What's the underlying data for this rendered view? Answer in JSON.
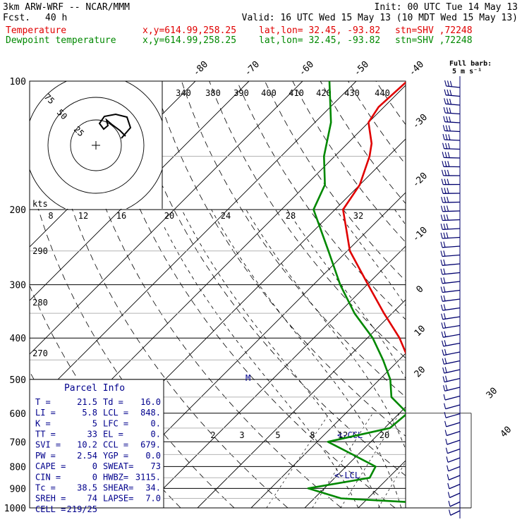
{
  "header": {
    "model": "3km ARW-WRF -- NCAR/MMM",
    "fcst_label": "Fcst.",
    "fcst_value": "40 h",
    "init": "Init: 00 UTC Tue 14 May 13",
    "valid": "Valid: 16 UTC Wed 15 May 13 (10 MDT Wed 15 May 13)",
    "temp_line": {
      "name": "Temperature",
      "xy": "x,y=614.99,258.25",
      "latlon": "lat,lon= 32.45, -93.82",
      "stn": "stn=SHV ,72248"
    },
    "dew_line": {
      "name": "Dewpoint temperature",
      "xy": "x,y=614.99,258.25",
      "latlon": "lat,lon= 32.45, -93.82",
      "stn": "stn=SHV ,72248"
    }
  },
  "colors": {
    "temperature": "#e00000",
    "dewpoint": "#008800",
    "hodograph": "#000000",
    "barbs": "#00006e",
    "panel_text": "#00008c",
    "grid": "#000000"
  },
  "barb_label": {
    "line1": "Full barb:",
    "line2": "5 m s⁻¹"
  },
  "panel": {
    "title": "Parcel Info",
    "rows": [
      {
        "a": "T   =",
        "b": "21.5",
        "c": "Td =",
        "d": "16.0"
      },
      {
        "a": "LI  =",
        "b": "5.8",
        "c": "LCL =",
        "d": "848."
      },
      {
        "a": "K   =",
        "b": "5",
        "c": "LFC =",
        "d": "0."
      },
      {
        "a": "TT  =",
        "b": "33",
        "c": "EL  =",
        "d": "0."
      },
      {
        "a": "SVI =",
        "b": "10.2",
        "c": "CCL =",
        "d": "679."
      },
      {
        "a": "PW  =",
        "b": "2.54",
        "c": "YGP =",
        "d": "0.0"
      },
      {
        "a": "CAPE =",
        "b": "0",
        "c": "SWEAT=",
        "d": "73"
      },
      {
        "a": "CIN =",
        "b": "0",
        "c": "HWBZ=",
        "d": "3115."
      },
      {
        "a": "Tc  =",
        "b": "38.5",
        "c": "SHEAR=",
        "d": "34."
      },
      {
        "a": "SREH =",
        "b": "74",
        "c": "LAPSE=",
        "d": "7.0"
      },
      {
        "a": "CELL =",
        "b": "219/25",
        "c": "",
        "d": ""
      }
    ]
  },
  "annotations": {
    "ccl": "<-CCL",
    "lcl": "<-LCL",
    "m_marker": "M"
  },
  "hodograph": {
    "unit": "kts",
    "rings": [
      "75",
      "50",
      "25"
    ]
  },
  "chart_data": {
    "type": "line",
    "title": "",
    "xlabel": "",
    "ylabel": "",
    "pressure_ticks": [
      100,
      200,
      300,
      400,
      500,
      600,
      700,
      800,
      900,
      1000
    ],
    "isotherm_ticks": [
      -80,
      -70,
      -60,
      -50,
      -40,
      -30,
      -20,
      -10,
      0,
      10,
      20,
      30,
      40
    ],
    "theta_labels": [
      340,
      380,
      390,
      400,
      410,
      420,
      430,
      440
    ],
    "theta_labels_low": [
      290,
      280,
      270
    ],
    "mixing_ratio_labels": [
      2,
      3,
      5,
      8,
      12,
      20
    ],
    "hodo_speed_ticks": [
      8,
      12,
      16,
      20,
      24,
      28,
      32
    ],
    "series": [
      {
        "name": "Temperature",
        "points": [
          {
            "p": 1000,
            "t": 22.0
          },
          {
            "p": 975,
            "t": 20.4
          },
          {
            "p": 950,
            "t": 19.3
          },
          {
            "p": 925,
            "t": 18.5
          },
          {
            "p": 900,
            "t": 16.8
          },
          {
            "p": 850,
            "t": 13.2
          },
          {
            "p": 800,
            "t": 10.0
          },
          {
            "p": 750,
            "t": 6.8
          },
          {
            "p": 700,
            "t": 3.2
          },
          {
            "p": 650,
            "t": -0.7
          },
          {
            "p": 600,
            "t": -4.3
          },
          {
            "p": 550,
            "t": -8.8
          },
          {
            "p": 500,
            "t": -13.5
          },
          {
            "p": 450,
            "t": -18.2
          },
          {
            "p": 400,
            "t": -24.0
          },
          {
            "p": 350,
            "t": -31.5
          },
          {
            "p": 300,
            "t": -39.8
          },
          {
            "p": 250,
            "t": -49.5
          },
          {
            "p": 200,
            "t": -58.5
          },
          {
            "p": 175,
            "t": -60.0
          },
          {
            "p": 150,
            "t": -63.5
          },
          {
            "p": 140,
            "t": -65.5
          },
          {
            "p": 125,
            "t": -70.0
          },
          {
            "p": 115,
            "t": -71.0
          },
          {
            "p": 100,
            "t": -70.5
          }
        ]
      },
      {
        "name": "Dewpoint temperature",
        "points": [
          {
            "p": 1000,
            "t": 16.0
          },
          {
            "p": 980,
            "t": 15.5
          },
          {
            "p": 950,
            "t": -5.0
          },
          {
            "p": 900,
            "t": -13.0
          },
          {
            "p": 850,
            "t": -3.5
          },
          {
            "p": 800,
            "t": -4.5
          },
          {
            "p": 750,
            "t": -11.0
          },
          {
            "p": 700,
            "t": -18.0
          },
          {
            "p": 650,
            "t": -9.0
          },
          {
            "p": 600,
            "t": -8.5
          },
          {
            "p": 550,
            "t": -14.5
          },
          {
            "p": 500,
            "t": -18.0
          },
          {
            "p": 450,
            "t": -23.0
          },
          {
            "p": 400,
            "t": -29.0
          },
          {
            "p": 350,
            "t": -37.0
          },
          {
            "p": 300,
            "t": -45.0
          },
          {
            "p": 250,
            "t": -53.5
          },
          {
            "p": 200,
            "t": -64.0
          },
          {
            "p": 175,
            "t": -66.5
          },
          {
            "p": 150,
            "t": -72.0
          },
          {
            "p": 125,
            "t": -77.0
          },
          {
            "p": 100,
            "t": -85.0
          }
        ]
      }
    ]
  }
}
